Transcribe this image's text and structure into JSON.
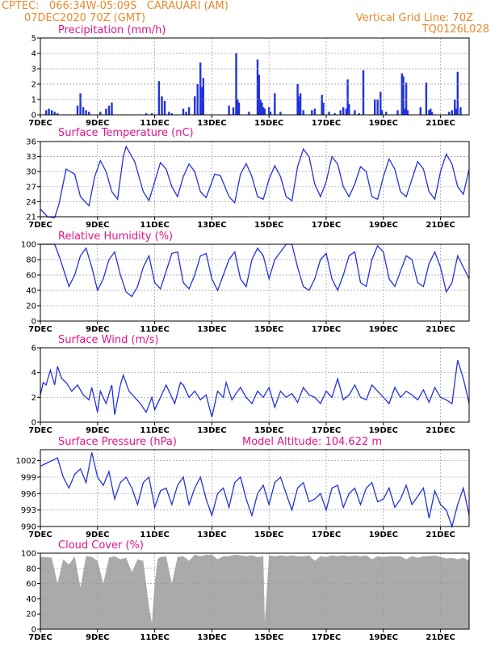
{
  "header": {
    "line1": "CPTEC:   066:34W-05:09S   CARAUARI (AM)",
    "line2_left": "07DEC2020 70Z (GMT)",
    "line2_right": "Vertical Grid Line: 70Z",
    "line3_right": "TQ0126L028"
  },
  "colors": {
    "line": "#2233dd",
    "title": "#e0158e",
    "header": "#e88a2c",
    "cloud": "#aaaaaa",
    "grid": "#999999"
  },
  "x_axis": {
    "start_day": 7,
    "end_day": 22,
    "labels": [
      "7DEC",
      "9DEC",
      "11DEC",
      "13DEC",
      "15DEC",
      "17DEC",
      "19DEC",
      "21DEC"
    ],
    "label_days": [
      7,
      9,
      11,
      13,
      15,
      17,
      19,
      21
    ]
  },
  "chart_data": [
    {
      "type": "bar",
      "title": "Precipitation (mm/h)",
      "ylim": [
        0,
        5
      ],
      "yticks": [
        0,
        1,
        2,
        3,
        4,
        5
      ],
      "x": [
        7.2,
        7.3,
        7.4,
        7.5,
        7.6,
        8.3,
        8.4,
        8.5,
        8.6,
        8.7,
        9.1,
        9.3,
        9.4,
        9.5,
        10.7,
        10.9,
        11.15,
        11.25,
        11.35,
        11.5,
        11.6,
        12.0,
        12.1,
        12.2,
        12.4,
        12.5,
        12.6,
        12.65,
        12.7,
        13.6,
        13.75,
        13.85,
        13.9,
        13.95,
        14.3,
        14.6,
        14.65,
        14.7,
        14.75,
        14.8,
        14.85,
        15.0,
        15.05,
        15.2,
        15.4,
        16.0,
        16.05,
        16.1,
        16.2,
        16.5,
        16.6,
        16.85,
        16.9,
        17.1,
        17.3,
        17.5,
        17.6,
        17.7,
        17.75,
        17.8,
        18.0,
        18.15,
        18.3,
        18.7,
        18.8,
        18.9,
        18.95,
        19.1,
        19.5,
        19.65,
        19.7,
        19.75,
        19.8,
        19.85,
        20.3,
        20.5,
        20.6,
        20.65,
        20.7,
        21.3,
        21.4,
        21.5,
        21.55,
        21.6,
        21.7
      ],
      "values": [
        0.3,
        0.4,
        0.3,
        0.2,
        0.1,
        0.6,
        1.4,
        0.5,
        0.3,
        0.2,
        0.2,
        0.4,
        0.6,
        0.8,
        0.1,
        0.1,
        2.2,
        1.2,
        0.9,
        0.2,
        0.1,
        0.4,
        0.2,
        0.5,
        1.2,
        2.0,
        3.4,
        1.8,
        2.4,
        0.6,
        0.5,
        4.0,
        1.0,
        0.8,
        0.2,
        3.6,
        2.6,
        1.0,
        0.8,
        0.5,
        0.4,
        0.5,
        0.2,
        1.4,
        0.2,
        2.0,
        1.2,
        1.4,
        0.3,
        0.3,
        0.4,
        1.3,
        0.8,
        0.2,
        0.1,
        0.3,
        0.5,
        0.4,
        2.3,
        0.7,
        0.3,
        0.1,
        2.9,
        1.0,
        1.0,
        1.5,
        0.3,
        0.2,
        0.3,
        2.7,
        2.5,
        0.4,
        2.1,
        0.3,
        0.5,
        2.1,
        0.3,
        0.4,
        0.2,
        0.2,
        0.3,
        1.0,
        0.4,
        2.8,
        0.5
      ]
    },
    {
      "type": "line",
      "title": "Surface Temperature (nC)",
      "ylim": [
        21,
        36
      ],
      "yticks": [
        21,
        24,
        27,
        30,
        33,
        36
      ],
      "x": [
        7.0,
        7.25,
        7.5,
        7.65,
        7.9,
        8.2,
        8.4,
        8.7,
        8.9,
        9.1,
        9.3,
        9.5,
        9.7,
        9.9,
        10.0,
        10.3,
        10.6,
        10.8,
        11.0,
        11.2,
        11.4,
        11.6,
        11.8,
        12.0,
        12.2,
        12.4,
        12.6,
        12.8,
        13.1,
        13.3,
        13.6,
        13.8,
        14.0,
        14.2,
        14.4,
        14.6,
        14.8,
        15.0,
        15.2,
        15.4,
        15.6,
        15.8,
        16.0,
        16.2,
        16.4,
        16.6,
        16.8,
        17.0,
        17.2,
        17.4,
        17.6,
        17.8,
        18.0,
        18.2,
        18.4,
        18.6,
        18.8,
        19.0,
        19.2,
        19.4,
        19.6,
        19.8,
        20.0,
        20.2,
        20.4,
        20.6,
        20.8,
        21.0,
        21.2,
        21.4,
        21.6,
        21.8,
        22.0
      ],
      "values": [
        22.5,
        21.0,
        20.8,
        23.5,
        30.5,
        29.5,
        25.0,
        23.2,
        29.0,
        32.2,
        30.0,
        26.0,
        24.5,
        33.0,
        35.0,
        32.0,
        26.0,
        24.2,
        28.0,
        31.8,
        30.5,
        27.0,
        25.0,
        29.0,
        31.5,
        30.0,
        26.0,
        24.8,
        29.5,
        29.2,
        25.0,
        23.8,
        29.5,
        31.6,
        29.0,
        25.0,
        24.5,
        28.5,
        31.2,
        29.0,
        25.0,
        24.2,
        31.0,
        34.5,
        33.0,
        27.5,
        25.0,
        28.0,
        33.0,
        31.5,
        27.0,
        25.0,
        27.5,
        31.0,
        30.0,
        25.0,
        24.5,
        29.0,
        32.5,
        30.5,
        26.0,
        25.0,
        28.5,
        32.0,
        30.5,
        26.0,
        24.5,
        30.0,
        33.5,
        31.5,
        27.0,
        25.5,
        30.5
      ]
    },
    {
      "type": "line",
      "title": "Relative Humidity (%)",
      "ylim": [
        0,
        100
      ],
      "yticks": [
        0,
        20,
        40,
        60,
        80,
        100
      ],
      "x": [
        7.0,
        7.3,
        7.5,
        7.7,
        8.0,
        8.2,
        8.4,
        8.6,
        8.8,
        9.0,
        9.2,
        9.4,
        9.6,
        9.8,
        10.0,
        10.2,
        10.4,
        10.6,
        10.8,
        11.0,
        11.2,
        11.4,
        11.6,
        11.8,
        12.0,
        12.2,
        12.4,
        12.6,
        12.8,
        13.0,
        13.2,
        13.4,
        13.6,
        13.8,
        14.0,
        14.2,
        14.4,
        14.6,
        14.8,
        15.0,
        15.2,
        15.4,
        15.6,
        15.8,
        16.0,
        16.2,
        16.4,
        16.6,
        16.8,
        17.0,
        17.2,
        17.4,
        17.6,
        17.8,
        18.0,
        18.2,
        18.4,
        18.6,
        18.8,
        19.0,
        19.2,
        19.4,
        19.6,
        19.8,
        20.0,
        20.2,
        20.4,
        20.6,
        20.8,
        21.0,
        21.2,
        21.4,
        21.6,
        21.8,
        22.0
      ],
      "values": [
        100,
        100,
        100,
        80,
        45,
        60,
        85,
        95,
        70,
        40,
        55,
        80,
        90,
        60,
        38,
        32,
        45,
        70,
        85,
        50,
        42,
        65,
        88,
        90,
        50,
        42,
        60,
        85,
        88,
        55,
        40,
        60,
        80,
        90,
        55,
        45,
        80,
        95,
        85,
        55,
        80,
        90,
        100,
        100,
        70,
        45,
        40,
        55,
        80,
        88,
        55,
        40,
        60,
        85,
        90,
        50,
        45,
        80,
        98,
        90,
        55,
        45,
        65,
        85,
        80,
        50,
        45,
        75,
        90,
        70,
        38,
        50,
        85,
        70,
        55
      ]
    },
    {
      "type": "line",
      "title": "Surface Wind (m/s)",
      "ylim": [
        0,
        6
      ],
      "yticks": [
        0,
        2,
        4,
        6
      ],
      "x": [
        7.0,
        7.1,
        7.2,
        7.35,
        7.5,
        7.6,
        7.75,
        7.9,
        8.1,
        8.3,
        8.5,
        8.7,
        8.8,
        9.0,
        9.1,
        9.3,
        9.5,
        9.6,
        9.8,
        9.9,
        10.1,
        10.3,
        10.5,
        10.7,
        10.9,
        11.0,
        11.2,
        11.4,
        11.5,
        11.7,
        11.9,
        12.0,
        12.2,
        12.4,
        12.6,
        12.8,
        13.0,
        13.2,
        13.4,
        13.5,
        13.7,
        13.9,
        14.0,
        14.2,
        14.4,
        14.6,
        14.8,
        15.0,
        15.2,
        15.4,
        15.6,
        15.8,
        16.0,
        16.2,
        16.4,
        16.6,
        16.8,
        17.0,
        17.2,
        17.4,
        17.6,
        17.8,
        18.0,
        18.2,
        18.4,
        18.6,
        18.8,
        19.0,
        19.2,
        19.4,
        19.6,
        19.8,
        20.0,
        20.2,
        20.4,
        20.6,
        20.8,
        21.0,
        21.2,
        21.4,
        21.6,
        21.8,
        22.0
      ],
      "values": [
        2.2,
        3.2,
        3.0,
        4.2,
        3.0,
        4.5,
        3.5,
        3.2,
        2.5,
        3.0,
        2.2,
        1.8,
        2.8,
        0.8,
        2.5,
        1.5,
        3.0,
        0.6,
        3.0,
        3.8,
        2.5,
        2.0,
        1.5,
        0.8,
        2.0,
        1.0,
        2.0,
        3.0,
        2.5,
        1.5,
        3.2,
        3.0,
        2.0,
        2.5,
        1.8,
        2.2,
        0.4,
        2.5,
        2.0,
        3.2,
        1.8,
        2.5,
        2.8,
        2.0,
        1.5,
        2.5,
        2.0,
        2.8,
        1.2,
        2.5,
        2.0,
        2.3,
        1.6,
        2.8,
        2.2,
        2.0,
        1.5,
        2.5,
        2.0,
        3.5,
        1.8,
        2.2,
        3.0,
        2.0,
        1.8,
        3.0,
        2.5,
        2.0,
        1.5,
        2.8,
        2.0,
        2.5,
        2.2,
        1.8,
        2.6,
        1.6,
        2.8,
        2.0,
        1.8,
        1.5,
        5.0,
        3.5,
        1.5
      ]
    },
    {
      "type": "line",
      "title": "Surface Pressure (hPa)",
      "annotation": "Model Altitude: 104.622  m",
      "ylim": [
        990,
        1004
      ],
      "yticks": [
        990,
        993,
        996,
        999,
        1002
      ],
      "x": [
        7.0,
        7.2,
        7.4,
        7.6,
        7.8,
        8.0,
        8.2,
        8.4,
        8.6,
        8.8,
        9.0,
        9.2,
        9.4,
        9.6,
        9.8,
        10.0,
        10.2,
        10.4,
        10.6,
        10.8,
        11.0,
        11.2,
        11.4,
        11.6,
        11.8,
        12.0,
        12.2,
        12.4,
        12.6,
        12.8,
        13.0,
        13.2,
        13.4,
        13.6,
        13.8,
        14.0,
        14.2,
        14.4,
        14.6,
        14.8,
        15.0,
        15.2,
        15.4,
        15.6,
        15.8,
        16.0,
        16.2,
        16.4,
        16.6,
        16.8,
        17.0,
        17.2,
        17.4,
        17.6,
        17.8,
        18.0,
        18.2,
        18.4,
        18.6,
        18.8,
        19.0,
        19.2,
        19.4,
        19.6,
        19.8,
        20.0,
        20.2,
        20.4,
        20.6,
        20.8,
        21.0,
        21.2,
        21.4,
        21.6,
        21.8,
        22.0
      ],
      "values": [
        1001.0,
        1001.5,
        1002.0,
        1002.5,
        999.0,
        997.0,
        999.5,
        1000.5,
        998.0,
        1003.5,
        999.0,
        997.5,
        1000.0,
        995.0,
        998.0,
        999.0,
        997.0,
        994.0,
        998.0,
        999.0,
        993.5,
        996.5,
        997.0,
        994.0,
        997.5,
        999.0,
        994.0,
        997.0,
        999.0,
        995.0,
        992.0,
        996.0,
        997.0,
        993.5,
        998.0,
        999.0,
        995.0,
        992.0,
        996.0,
        997.5,
        994.0,
        998.0,
        999.0,
        996.0,
        993.0,
        997.0,
        998.0,
        994.5,
        995.0,
        996.0,
        993.0,
        997.0,
        997.5,
        993.5,
        996.0,
        997.0,
        994.0,
        997.0,
        998.0,
        994.5,
        995.0,
        997.0,
        993.5,
        995.0,
        997.5,
        994.0,
        995.5,
        997.0,
        991.5,
        996.5,
        994.0,
        993.0,
        990.0,
        994.0,
        997.0,
        992.0
      ]
    },
    {
      "type": "area",
      "title": "Cloud Cover (%)",
      "ylim": [
        0,
        100
      ],
      "yticks": [
        0,
        20,
        40,
        60,
        80,
        100
      ],
      "x": [
        7.0,
        7.2,
        7.4,
        7.6,
        7.8,
        8.0,
        8.2,
        8.4,
        8.6,
        8.8,
        9.0,
        9.2,
        9.4,
        9.6,
        9.8,
        10.0,
        10.2,
        10.4,
        10.6,
        10.8,
        10.9,
        11.0,
        11.1,
        11.2,
        11.4,
        11.6,
        11.8,
        12.0,
        12.2,
        12.4,
        12.6,
        12.8,
        13.0,
        13.2,
        13.4,
        13.6,
        13.8,
        14.0,
        14.2,
        14.4,
        14.6,
        14.8,
        14.85,
        15.0,
        15.2,
        15.4,
        15.6,
        15.8,
        16.0,
        16.2,
        16.4,
        16.6,
        16.8,
        17.0,
        17.2,
        17.4,
        17.6,
        17.8,
        18.0,
        18.2,
        18.4,
        18.6,
        18.8,
        19.0,
        19.2,
        19.4,
        19.6,
        19.8,
        20.0,
        20.2,
        20.4,
        20.6,
        20.8,
        21.0,
        21.2,
        21.4,
        21.6,
        21.8,
        22.0
      ],
      "values": [
        95,
        95,
        94,
        60,
        92,
        85,
        96,
        55,
        96,
        95,
        90,
        60,
        94,
        96,
        92,
        94,
        75,
        92,
        90,
        30,
        8,
        60,
        92,
        95,
        96,
        60,
        95,
        96,
        90,
        98,
        96,
        98,
        98,
        92,
        96,
        96,
        98,
        97,
        96,
        97,
        95,
        96,
        10,
        97,
        96,
        97,
        96,
        97,
        96,
        96,
        97,
        90,
        96,
        95,
        97,
        96,
        97,
        96,
        97,
        96,
        97,
        92,
        96,
        95,
        96,
        96,
        96,
        92,
        96,
        94,
        96,
        96,
        97,
        95,
        93,
        94,
        92,
        94,
        90
      ]
    }
  ]
}
